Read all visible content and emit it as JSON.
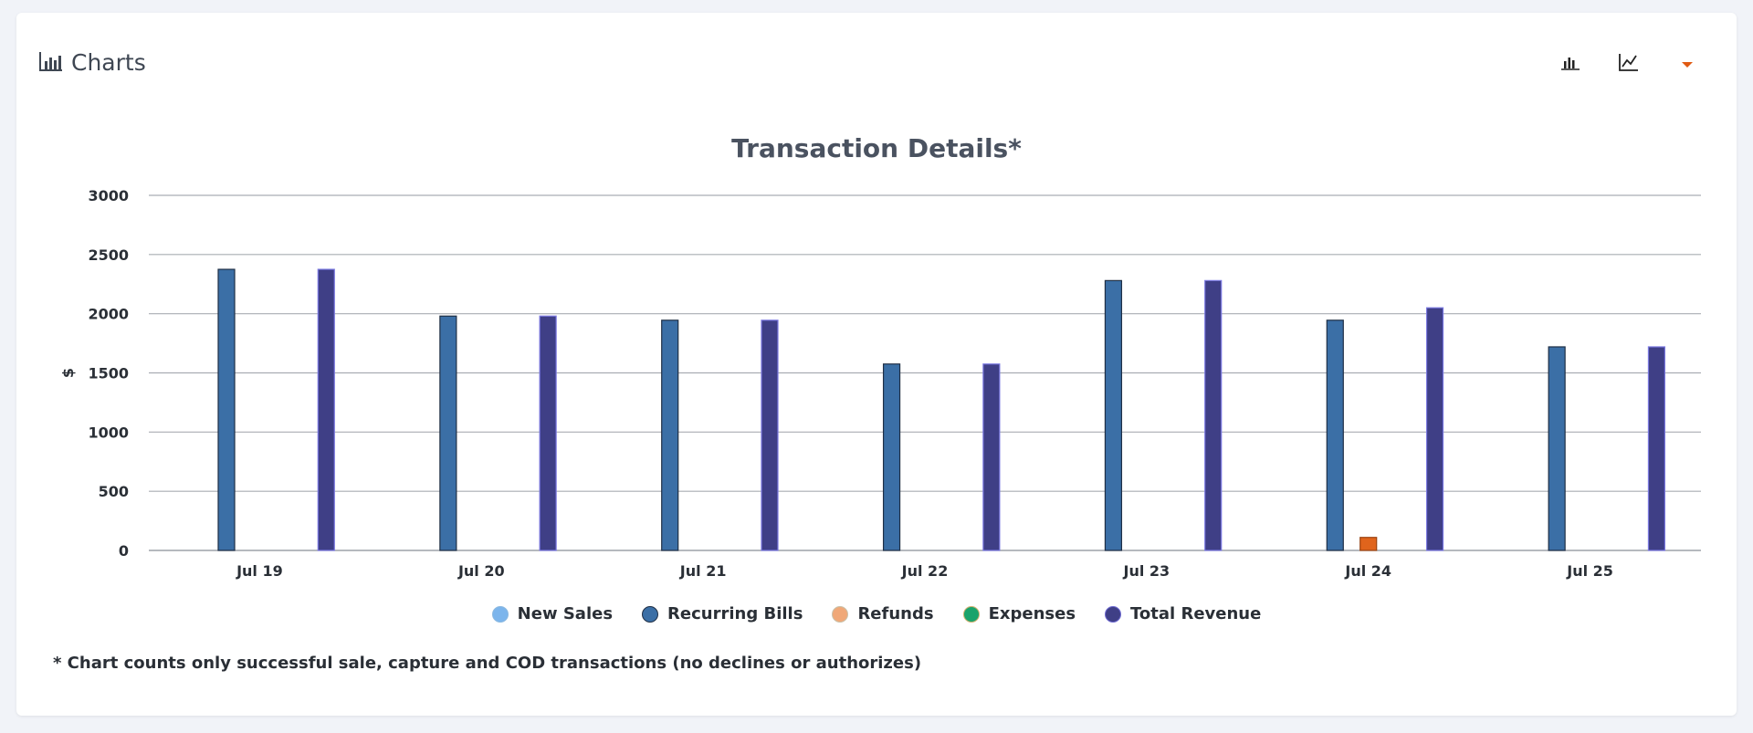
{
  "header": {
    "title": "Charts",
    "title_icon": "bar-chart-icon"
  },
  "toolbar": {
    "buttons": [
      {
        "icon": "bar-chart-icon"
      },
      {
        "icon": "line-chart-icon"
      },
      {
        "icon": "caret-down-icon",
        "color": "#e05a12"
      }
    ]
  },
  "chart_data": {
    "type": "bar",
    "title": "Transaction Details*",
    "xlabel": "",
    "ylabel": "$",
    "ylim": [
      0,
      3000
    ],
    "yticks": [
      0,
      500,
      1000,
      1500,
      2000,
      2500,
      3000
    ],
    "grid": true,
    "legend_position": "bottom",
    "categories": [
      "Jul 19",
      "Jul 20",
      "Jul 21",
      "Jul 22",
      "Jul 23",
      "Jul 24",
      "Jul 25"
    ],
    "series": [
      {
        "name": "New Sales",
        "color": "#7cb5ec",
        "border": "#6a9fd0",
        "values": [
          0,
          0,
          0,
          0,
          0,
          0,
          0
        ]
      },
      {
        "name": "Recurring Bills",
        "color": "#3b6fa6",
        "border": "#1f2f45",
        "values": [
          2375,
          1980,
          1945,
          1575,
          2280,
          1945,
          1720
        ]
      },
      {
        "name": "Refunds",
        "color": "#e0641c",
        "border": "#9a4412",
        "values": [
          0,
          0,
          0,
          0,
          0,
          110,
          0
        ]
      },
      {
        "name": "Expenses",
        "color": "#1aa36b",
        "border": "#0f6a44",
        "values": [
          0,
          0,
          0,
          0,
          0,
          0,
          0
        ]
      },
      {
        "name": "Total Revenue",
        "color": "#3f3f86",
        "border": "#7a78e0",
        "values": [
          2375,
          1980,
          1945,
          1575,
          2280,
          2050,
          1720
        ]
      }
    ],
    "legend_dots": {
      "New Sales": {
        "fill": "#7cb5ec",
        "stroke": "#8ab8e0"
      },
      "Recurring Bills": {
        "fill": "#3b6fa6",
        "stroke": "#1f2f45"
      },
      "Refunds": {
        "fill": "#f0a878",
        "stroke": "#c9c0a8"
      },
      "Expenses": {
        "fill": "#1aa36b",
        "stroke": "#d0b070"
      },
      "Total Revenue": {
        "fill": "#3f3f86",
        "stroke": "#6c68d0"
      }
    }
  },
  "footnote": "* Chart counts only successful sale, capture and COD transactions (no declines or authorizes)"
}
